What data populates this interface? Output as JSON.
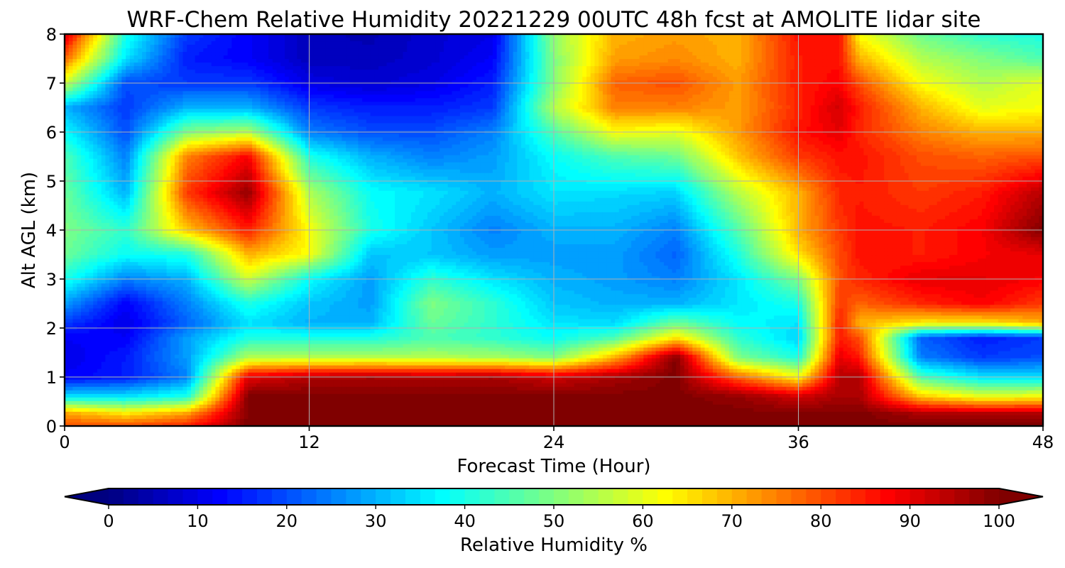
{
  "chart_data": {
    "type": "heatmap",
    "subtype": "filled-contour",
    "title": "WRF-Chem Relative Humidity 20221229 00UTC 48h fcst at AMOLITE lidar site",
    "xlabel": "Forecast Time (Hour)",
    "ylabel": "Alt AGL (km)",
    "xlim": [
      0,
      48
    ],
    "ylim": [
      0,
      8
    ],
    "x_ticks": [
      "0",
      "12",
      "24",
      "36",
      "48"
    ],
    "y_ticks": [
      "0",
      "1",
      "2",
      "3",
      "4",
      "5",
      "6",
      "7",
      "8"
    ],
    "grid": true,
    "colormap": "jet",
    "colorbar": {
      "label": "Relative Humidity %",
      "range": [
        0,
        100
      ],
      "ticks": [
        "0",
        "10",
        "20",
        "30",
        "40",
        "50",
        "60",
        "70",
        "80",
        "90",
        "100"
      ],
      "extend": "both",
      "position": "bottom"
    },
    "x": [
      0,
      3,
      6,
      9,
      12,
      15,
      18,
      21,
      24,
      27,
      30,
      33,
      36,
      38,
      39,
      42,
      45,
      48
    ],
    "y": [
      0,
      0.25,
      0.6,
      1.0,
      1.4,
      1.8,
      2.1,
      2.5,
      3.0,
      3.5,
      4.0,
      4.75,
      5.5,
      6.0,
      6.5,
      7.0,
      7.5,
      8.0
    ],
    "z": [
      [
        80,
        80,
        84,
        100,
        100,
        100,
        100,
        100,
        100,
        100,
        100,
        100,
        100,
        100,
        100,
        100,
        100,
        100
      ],
      [
        72,
        65,
        72,
        100,
        100,
        100,
        100,
        100,
        100,
        100,
        100,
        100,
        100,
        100,
        100,
        96,
        95,
        95
      ],
      [
        35,
        35,
        40,
        100,
        100,
        100,
        100,
        100,
        100,
        100,
        100,
        98,
        92,
        96,
        96,
        68,
        60,
        62
      ],
      [
        12,
        15,
        25,
        90,
        95,
        96,
        95,
        96,
        92,
        96,
        100,
        78,
        62,
        95,
        95,
        45,
        35,
        35
      ],
      [
        10,
        15,
        28,
        55,
        55,
        55,
        55,
        54,
        50,
        70,
        100,
        50,
        40,
        90,
        85,
        25,
        18,
        20
      ],
      [
        12,
        12,
        28,
        40,
        40,
        40,
        45,
        42,
        38,
        45,
        65,
        42,
        33,
        85,
        80,
        22,
        15,
        18
      ],
      [
        18,
        10,
        22,
        35,
        30,
        30,
        48,
        42,
        35,
        34,
        48,
        38,
        35,
        85,
        70,
        64,
        64,
        70
      ],
      [
        28,
        12,
        25,
        40,
        32,
        28,
        50,
        42,
        32,
        30,
        30,
        35,
        40,
        82,
        78,
        84,
        88,
        82
      ],
      [
        40,
        25,
        30,
        58,
        38,
        28,
        42,
        35,
        30,
        28,
        25,
        35,
        50,
        80,
        84,
        90,
        90,
        88
      ],
      [
        48,
        38,
        40,
        70,
        62,
        32,
        32,
        28,
        28,
        28,
        22,
        40,
        65,
        80,
        86,
        85,
        88,
        90
      ],
      [
        50,
        42,
        68,
        85,
        62,
        40,
        32,
        25,
        30,
        30,
        25,
        45,
        70,
        82,
        86,
        85,
        88,
        100
      ],
      [
        48,
        30,
        82,
        98,
        55,
        38,
        35,
        30,
        35,
        34,
        33,
        55,
        70,
        84,
        85,
        82,
        85,
        95
      ],
      [
        45,
        25,
        75,
        88,
        40,
        30,
        25,
        28,
        38,
        45,
        48,
        68,
        82,
        86,
        86,
        80,
        78,
        80
      ],
      [
        38,
        20,
        50,
        55,
        25,
        20,
        20,
        25,
        45,
        62,
        60,
        72,
        86,
        90,
        84,
        75,
        70,
        70
      ],
      [
        30,
        18,
        30,
        30,
        18,
        15,
        15,
        18,
        55,
        75,
        75,
        72,
        84,
        92,
        85,
        70,
        60,
        62
      ],
      [
        58,
        20,
        18,
        18,
        10,
        8,
        10,
        15,
        50,
        78,
        80,
        72,
        85,
        88,
        80,
        62,
        55,
        60
      ],
      [
        78,
        35,
        15,
        12,
        6,
        6,
        8,
        12,
        50,
        72,
        74,
        70,
        85,
        86,
        70,
        55,
        50,
        45
      ],
      [
        92,
        40,
        18,
        12,
        6,
        5,
        8,
        10,
        52,
        70,
        72,
        70,
        86,
        86,
        62,
        48,
        42,
        40
      ]
    ]
  }
}
